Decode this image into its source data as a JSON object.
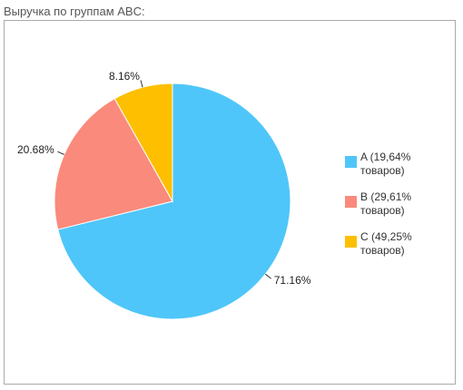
{
  "chart_data": {
    "type": "pie",
    "title": "Выручка по группам ABC:",
    "categories": [
      "A (19,64% товаров)",
      "B (29,61% товаров)",
      "C (49,25% товаров)"
    ],
    "values": [
      71.16,
      20.68,
      8.16
    ],
    "value_labels": [
      "71.16%",
      "20.68%",
      "8.16%"
    ],
    "colors": [
      "#4fc6f9",
      "#fa8a7b",
      "#fdbf00"
    ]
  }
}
